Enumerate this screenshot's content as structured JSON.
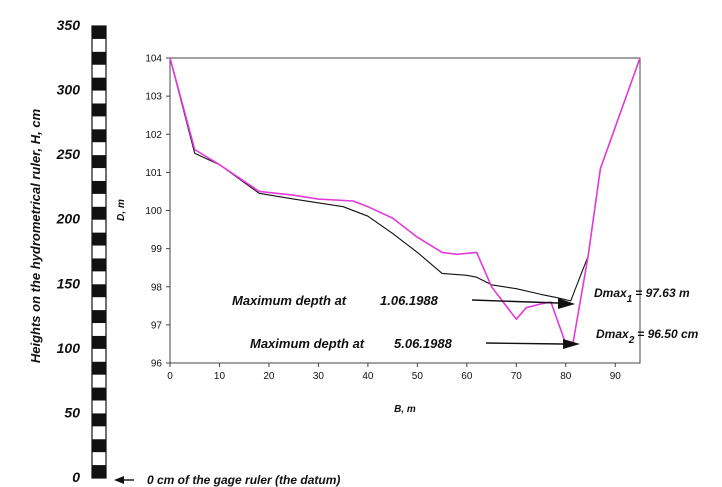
{
  "chart_data": {
    "type": "line",
    "xlabel": "B, m",
    "ylabel": "D, m",
    "xlim": [
      0,
      95
    ],
    "ylim": [
      96,
      104
    ],
    "x_ticks": [
      0,
      10,
      20,
      30,
      40,
      50,
      60,
      70,
      80,
      90
    ],
    "y_ticks": [
      96,
      97,
      98,
      99,
      100,
      101,
      102,
      103,
      104
    ],
    "grid": false,
    "series": [
      {
        "name": "",
        "color": "#111111",
        "points": [
          [
            0,
            104
          ],
          [
            5,
            101.5
          ],
          [
            10,
            101.2
          ],
          [
            18,
            100.45
          ],
          [
            25,
            100.3
          ],
          [
            35,
            100.1
          ],
          [
            40,
            99.85
          ],
          [
            45,
            99.4
          ],
          [
            50,
            98.9
          ],
          [
            55,
            98.35
          ],
          [
            60,
            98.3
          ],
          [
            62,
            98.25
          ],
          [
            65,
            98.05
          ],
          [
            70,
            97.95
          ],
          [
            75,
            97.8
          ],
          [
            78,
            97.72
          ],
          [
            81,
            97.63
          ],
          [
            83,
            98.3
          ],
          [
            84.5,
            98.8
          ],
          [
            87,
            101.1
          ],
          [
            95,
            104
          ]
        ]
      },
      {
        "name": "",
        "color": "#e23bd8",
        "points": [
          [
            0,
            104
          ],
          [
            5,
            101.6
          ],
          [
            10,
            101.2
          ],
          [
            18,
            100.5
          ],
          [
            25,
            100.4
          ],
          [
            30,
            100.3
          ],
          [
            37,
            100.25
          ],
          [
            40,
            100.1
          ],
          [
            45,
            99.8
          ],
          [
            50,
            99.3
          ],
          [
            55,
            98.9
          ],
          [
            58,
            98.85
          ],
          [
            62,
            98.9
          ],
          [
            65,
            98.0
          ],
          [
            70,
            97.15
          ],
          [
            72,
            97.45
          ],
          [
            75,
            97.55
          ],
          [
            77,
            97.6
          ],
          [
            80,
            96.5
          ],
          [
            81.5,
            96.55
          ],
          [
            84.5,
            98.8
          ],
          [
            87,
            101.1
          ],
          [
            95,
            104
          ]
        ]
      }
    ],
    "annotations": [
      {
        "text": "Maximum depth at",
        "date": "1.06.1988"
      },
      {
        "text": "Maximum depth at",
        "date": "5.06.1988"
      }
    ],
    "dmax": [
      {
        "prefix": "Dmax",
        "sub": "1",
        "value": "= 97.63 m"
      },
      {
        "prefix": "Dmax",
        "sub": "2",
        "value": "= 96.50 cm"
      }
    ]
  },
  "ruler": {
    "label": "Heights on the  hydrometrical ruler, H, cm",
    "ticks": [
      350,
      300,
      250,
      200,
      150,
      100,
      50,
      0
    ],
    "max": 350,
    "datum_label": "0 cm of the gage ruler  (the datum)"
  }
}
